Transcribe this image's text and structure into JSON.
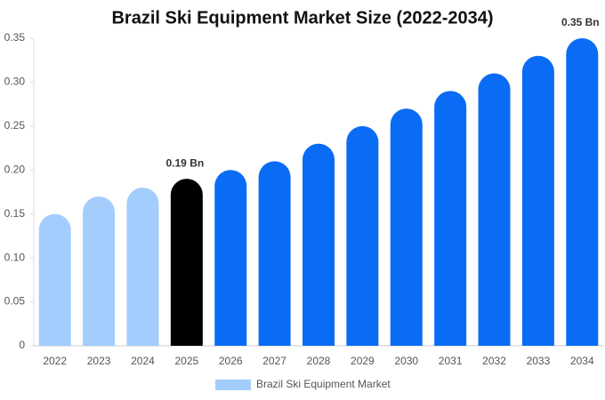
{
  "chart_data": {
    "type": "bar",
    "title": "Brazil Ski Equipment Market Size (2022-2034)",
    "categories": [
      "2022",
      "2023",
      "2024",
      "2025",
      "2026",
      "2027",
      "2028",
      "2029",
      "2030",
      "2031",
      "2032",
      "2033",
      "2034"
    ],
    "series": [
      {
        "name": "Brazil Ski Equipment Market",
        "color": "#a3cdfd",
        "colors": [
          "#a3cdfd",
          "#a3cdfd",
          "#a3cdfd",
          "#000000",
          "#0a6cf5",
          "#0a6cf5",
          "#0a6cf5",
          "#0a6cf5",
          "#0a6cf5",
          "#0a6cf5",
          "#0a6cf5",
          "#0a6cf5",
          "#0a6cf5"
        ],
        "values": [
          0.15,
          0.17,
          0.18,
          0.19,
          0.2,
          0.21,
          0.23,
          0.25,
          0.27,
          0.29,
          0.31,
          0.33,
          0.35
        ],
        "value_labels": [
          null,
          null,
          null,
          "0.19 Bn",
          null,
          null,
          null,
          null,
          null,
          null,
          null,
          null,
          "0.35 Bn"
        ]
      }
    ],
    "ylim": [
      0,
      0.35
    ],
    "yticks": [
      0,
      0.05,
      {
        "value": 0.1,
        "label": "0.10"
      },
      0.15,
      {
        "value": 0.2,
        "label": "0.20"
      },
      0.25,
      {
        "value": 0.3,
        "label": "0.30"
      },
      0.35
    ],
    "legend": "bottom"
  }
}
